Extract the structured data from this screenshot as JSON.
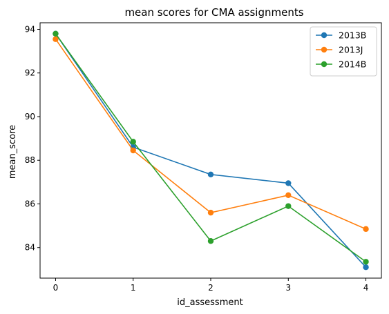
{
  "chart_data": {
    "type": "line",
    "title": "mean scores for CMA assignments",
    "xlabel": "id_assessment",
    "ylabel": "mean_score",
    "x": [
      0,
      1,
      2,
      3,
      4
    ],
    "xticks": [
      "0",
      "1",
      "2",
      "3",
      "4"
    ],
    "yticks": [
      "84",
      "86",
      "88",
      "90",
      "92",
      "94"
    ],
    "xlim": [
      -0.2,
      4.2
    ],
    "ylim": [
      82.6,
      94.3
    ],
    "grid": false,
    "legend_position": "top-right",
    "series": [
      {
        "name": "2013B",
        "color": "#1f77b4",
        "values": [
          93.8,
          88.6,
          87.35,
          86.95,
          83.1
        ]
      },
      {
        "name": "2013J",
        "color": "#ff7f0e",
        "values": [
          93.55,
          88.45,
          85.6,
          86.4,
          84.85
        ]
      },
      {
        "name": "2014B",
        "color": "#2ca02c",
        "values": [
          93.8,
          88.85,
          84.3,
          85.9,
          83.35
        ]
      }
    ]
  }
}
